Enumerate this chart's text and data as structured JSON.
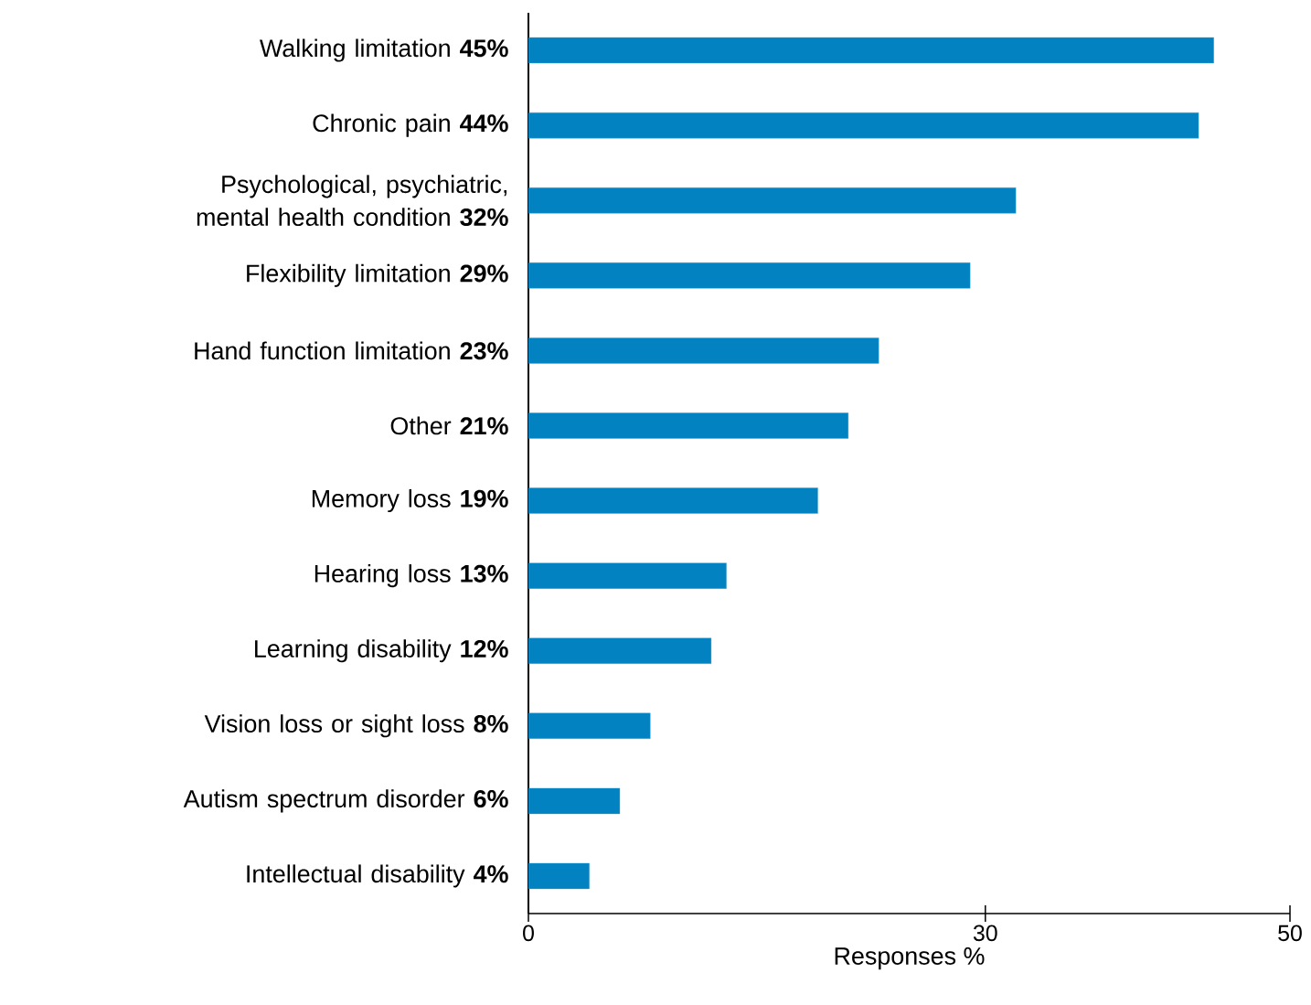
{
  "chart_data": {
    "type": "bar",
    "orientation": "horizontal",
    "xlabel": "Responses %",
    "categories": [
      "Walking limitation **45%**",
      "Chronic pain **44%**",
      "Psychological, psychiatric, mental health condition **32%**",
      "Flexibility limitation **29%**",
      "Hand function limitation **23%**",
      "Other **21%**",
      "Memory loss **19%**",
      "Hearing loss **13%**",
      "Learning disability **12%**",
      "Vision loss or sight loss **8%**",
      "Autism spectrum disorder **6%**",
      "Intellectual disability **4%**"
    ],
    "values": [
      45,
      44,
      32,
      29,
      23,
      21,
      19,
      13,
      12,
      8,
      6,
      4
    ],
    "color": "#0282c0",
    "xlim": [
      0,
      50
    ],
    "xticks": [
      0,
      30,
      50
    ]
  }
}
